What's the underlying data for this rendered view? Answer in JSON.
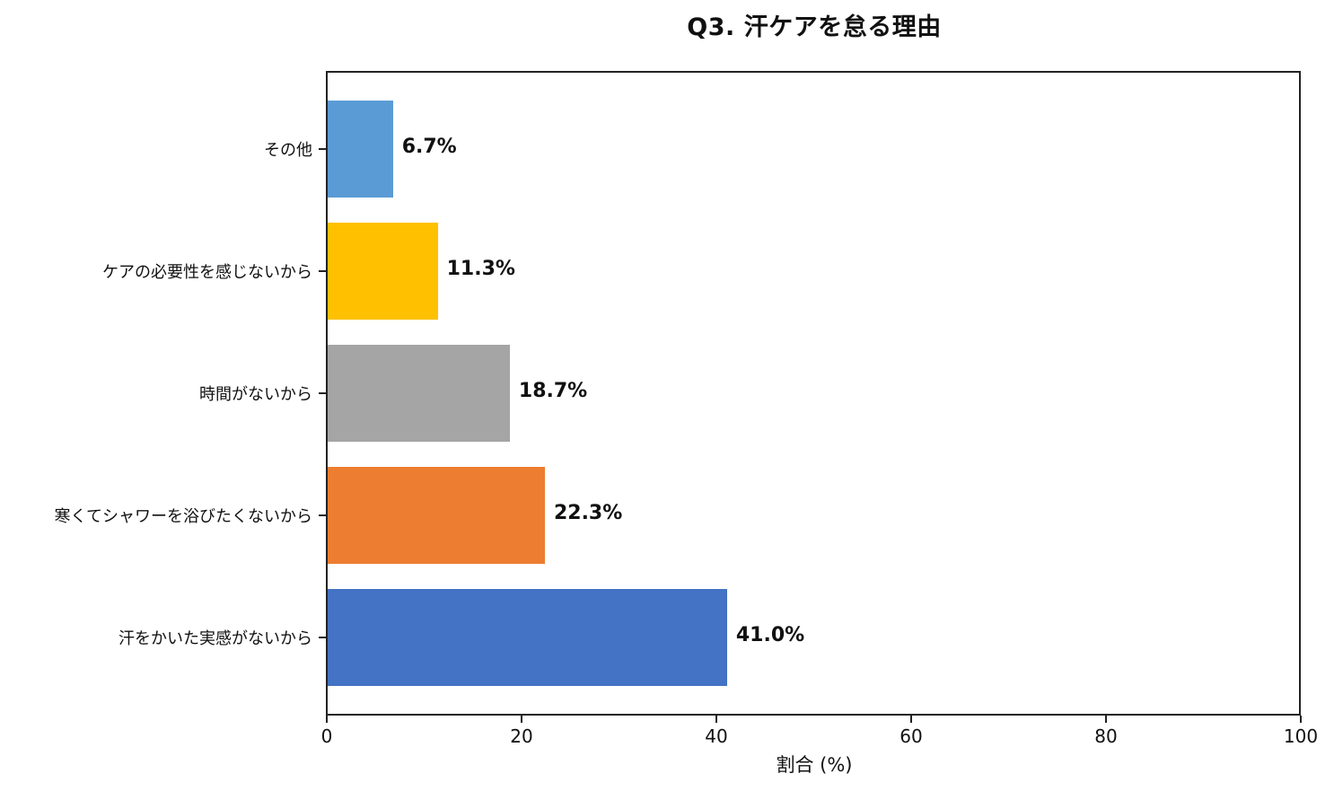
{
  "chart_data": {
    "type": "bar",
    "orientation": "horizontal",
    "title": "Q3. 汗ケアを怠る理由",
    "xlabel": "割合 (%)",
    "ylabel": "",
    "xlim": [
      0,
      100
    ],
    "xticks": [
      "0",
      "20",
      "40",
      "60",
      "80",
      "100"
    ],
    "grid": false,
    "legend": null,
    "categories": [
      "汗をかいた実感がないから",
      "寒くてシャワーを浴びたくないから",
      "時間がないから",
      "ケアの必要性を感じないから",
      "その他"
    ],
    "values": [
      41.0,
      22.3,
      18.7,
      11.3,
      6.7
    ],
    "value_labels": [
      "41.0%",
      "22.3%",
      "18.7%",
      "11.3%",
      "6.7%"
    ],
    "colors": [
      "#4472c4",
      "#ed7d31",
      "#a5a5a5",
      "#ffc000",
      "#5b9bd5"
    ]
  },
  "bars": [
    {
      "category": "その他",
      "value": 6.7,
      "label": "6.7%",
      "color": "#5b9bd5"
    },
    {
      "category": "ケアの必要性を感じないから",
      "value": 11.3,
      "label": "11.3%",
      "color": "#ffc000"
    },
    {
      "category": "時間がないから",
      "value": 18.7,
      "label": "18.7%",
      "color": "#a5a5a5"
    },
    {
      "category": "寒くてシャワーを浴びたくないから",
      "value": 22.3,
      "label": "22.3%",
      "color": "#ed7d31"
    },
    {
      "category": "汗をかいた実感がないから",
      "value": 41.0,
      "label": "41.0%",
      "color": "#4472c4"
    }
  ],
  "xaxis": {
    "ticks": [
      "0",
      "20",
      "40",
      "60",
      "80",
      "100"
    ],
    "label": "割合 (%)"
  },
  "title": "Q3. 汗ケアを怠る理由"
}
